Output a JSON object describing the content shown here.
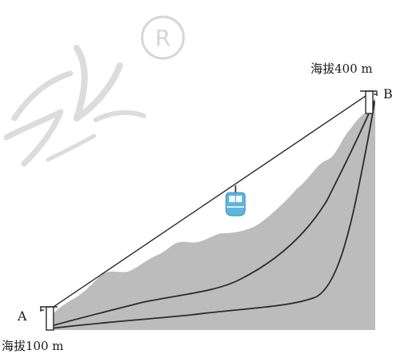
{
  "labels": {
    "top_altitude": "海拔400 m",
    "bottom_altitude": "海拔100 m",
    "point_a": "A",
    "point_b": "B"
  },
  "watermark": {
    "symbol": "®"
  },
  "colors": {
    "mountain_fill": "#bcbcbc",
    "line": "#2b2b2b",
    "cable_car_blue": "#5bb7dd",
    "watermark": "#d6d6d6"
  },
  "icons": {
    "cable_car": "cable-car-icon",
    "pylons": "pylon-icon"
  }
}
